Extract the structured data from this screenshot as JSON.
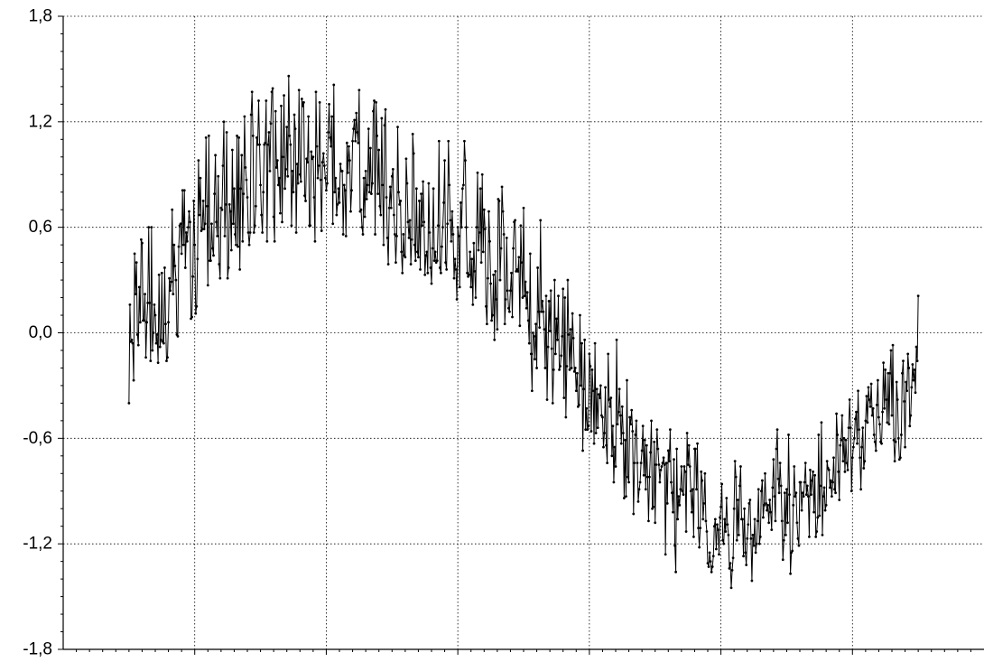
{
  "chart_data": {
    "type": "line",
    "title": "",
    "xlabel": "",
    "ylabel": "",
    "ylim": [
      -1.8,
      1.8
    ],
    "yticks": [
      1.8,
      1.2,
      0.6,
      0.0,
      -0.6,
      -1.2,
      -1.8
    ],
    "ytick_labels": [
      "1,8",
      "1,2",
      "0,6",
      "0,0",
      "-0,6",
      "-1,2",
      "-1,8"
    ],
    "xlim": [
      0,
      7
    ],
    "xticks": [
      1,
      2,
      3,
      4,
      5,
      6
    ],
    "xtick_labels": [],
    "grid": true,
    "marker": "dot",
    "color": "#000000",
    "series": [
      {
        "x_start": 0.5,
        "x_end": 6.5,
        "values": [
          -0.4,
          0.16,
          -0.05,
          -0.04,
          -0.06,
          -0.27,
          0.45,
          0.22,
          0.4,
          -0.01,
          -0.07,
          0.26,
          0.06,
          0.53,
          0.51,
          0.07,
          0.07,
          0.22,
          -0.14,
          0.06,
          0.17,
          0.6,
          0.17,
          -0.16,
          0.6,
          -0.1,
          -0.0,
          0.16,
          0.1,
          -0.06,
          -0.01,
          -0.17,
          0.33,
          -0.08,
          -0.04,
          0.34,
          -0.05,
          -0.06,
          0.37,
          0.05,
          -0.16,
          -0.14,
          0.06,
          0.31,
          0.24,
          0.29,
          0.7,
          0.22,
          0.5,
          0.38,
          0.3,
          -0.01,
          -0.02,
          0.49,
          0.61,
          0.62,
          0.45,
          0.81,
          0.5,
          0.81,
          0.37,
          0.57,
          0.52,
          0.6,
          0.69,
          0.63,
          0.08,
          0.09,
          0.32,
          0.75,
          0.5,
          0.11,
          0.15,
          0.42,
          0.98,
          0.67,
          0.88,
          0.58,
          0.59,
          0.75,
          0.59,
          0.62,
          1.11,
          0.72,
          0.27,
          1.12,
          0.41,
          0.41,
          0.62,
          0.48,
          0.44,
          0.79,
          1.01,
          0.63,
          0.55,
          0.89,
          0.39,
          0.31,
          0.71,
          0.7,
          0.95,
          1.2,
          0.55,
          0.73,
          1.14,
          0.31,
          0.37,
          0.73,
          0.69,
          0.47,
          1.04,
          0.62,
          0.82,
          0.56,
          0.5,
          1.12,
          0.49,
          1.11,
          0.36,
          0.82,
          1.01,
          0.52,
          0.79,
          1.23,
          0.94,
          0.87,
          0.77,
          0.57,
          0.5,
          0.57,
          1.24,
          1.37,
          1.12,
          0.57,
          0.61,
          0.72,
          1.11,
          1.07,
          1.32,
          1.07,
          0.84,
          0.67,
          0.57,
          0.8,
          1.07,
          1.08,
          1.32,
          0.52,
          1.07,
          1.14,
          0.92,
          1.19,
          1.37,
          1.39,
          0.66,
          0.52,
          1.26,
          0.94,
          0.98,
          0.84,
          0.88,
          0.68,
          1.29,
          0.63,
          1.0,
          1.35,
          0.82,
          0.93,
          1.17,
          0.89,
          1.46,
          1.12,
          1.07,
          0.61,
          0.92,
          0.8,
          1.24,
          1.16,
          0.57,
          0.96,
          0.85,
          1.38,
          0.9,
          0.86,
          1.33,
          1.29,
          1.31,
          0.78,
          0.75,
          0.99,
          0.97,
          1.23,
          0.61,
          0.61,
          1.03,
          0.99,
          1.0,
          0.77,
          0.52,
          1.37,
          1.06,
          0.88,
          0.95,
          1.31,
          0.87,
          0.58,
          0.97,
          1.02,
          0.95,
          0.88,
          0.81,
          0.85,
          1.14,
          1.3,
          1.11,
          1.06,
          1.23,
          0.62,
          1.41,
          0.8,
          0.88,
          0.67,
          0.73,
          0.82,
          0.74,
          0.96,
          0.92,
          0.92,
          0.56,
          0.84,
          0.81,
          0.55,
          1.08,
          0.91,
          1.06,
          0.98,
          0.69,
          0.81,
          1.09,
          1.16,
          1.21,
          1.09,
          1.25,
          1.14,
          1.08,
          1.38,
          0.69,
          0.7,
          0.6,
          0.56,
          0.88,
          0.66,
          0.92,
          0.76,
          0.84,
          1.16,
          0.8,
          1.05,
          0.79,
          0.85,
          1.26,
          1.32,
          0.56,
          1.31,
          1.12,
          0.79,
          1.04,
          0.72,
          0.67,
          1.22,
          0.84,
          0.5,
          1.18,
          1.27,
          0.77,
          0.54,
          0.39,
          0.71,
          0.83,
          0.71,
          0.89,
          0.93,
          0.67,
          0.56,
          0.4,
          0.55,
          1.17,
          0.8,
          0.73,
          0.75,
          0.46,
          0.34,
          0.56,
          0.44,
          0.43,
          0.99,
          0.85,
          0.63,
          0.54,
          0.64,
          0.39,
          0.53,
          1.13,
          1.02,
          0.5,
          0.41,
          0.82,
          0.46,
          0.43,
          0.75,
          0.36,
          0.79,
          0.61,
          0.86,
          0.63,
          0.33,
          0.44,
          0.46,
          0.34,
          0.85,
          0.57,
          0.37,
          0.28,
          0.48,
          0.82,
          0.41,
          0.46,
          0.4,
          0.41,
          0.61,
          1.09,
          0.37,
          0.34,
          0.49,
          0.6,
          0.74,
          0.98,
          0.4,
          0.36,
          0.62,
          1.09,
          0.84,
          0.64,
          0.52,
          0.69,
          0.56,
          0.31,
          0.42,
          0.36,
          0.19,
          0.6,
          0.55,
          0.26,
          0.74,
          0.6,
          0.82,
          0.84,
          1.09,
          0.98,
          0.6,
          0.34,
          0.32,
          0.33,
          0.46,
          0.26,
          0.42,
          0.16,
          0.51,
          0.35,
          0.2,
          0.6,
          0.91,
          0.47,
          0.57,
          0.82,
          0.4,
          0.9,
          0.46,
          0.7,
          0.59,
          0.15,
          0.05,
          0.31,
          0.69,
          0.52,
          0.28,
          0.07,
          0.1,
          0.33,
          -0.04,
          0.35,
          0.19,
          0.02,
          0.76,
          0.75,
          0.3,
          0.48,
          0.83,
          0.69,
          0.56,
          0.05,
          0.19,
          0.54,
          0.24,
          0.14,
          0.12,
          0.24,
          0.34,
          0.09,
          0.48,
          0.63,
          0.64,
          0.35,
          0.36,
          0.35,
          0.43,
          0.04,
          0.61,
          0.4,
          0.2,
          0.71,
          0.21,
          0.29,
          0.14,
          0.23,
          0.07,
          -0.06,
          0.45,
          -0.12,
          -0.33,
          0.0,
          -0.02,
          -0.15,
          0.05,
          -0.2,
          0.37,
          0.12,
          0.03,
          0.64,
          0.12,
          0.18,
          0.12,
          0.02,
          -0.2,
          0.21,
          -0.38,
          -0.08,
          0.18,
          0.01,
          0.24,
          -0.09,
          -0.4,
          -0.21,
          0.3,
          -0.12,
          0.08,
          -0.04,
          0.21,
          -0.21,
          -0.19,
          -0.13,
          -0.02,
          0.25,
          -0.37,
          0.2,
          -0.48,
          -0.19,
          0.3,
          -0.01,
          -0.21,
          0.02,
          -0.2,
          0.11,
          -0.03,
          -0.22,
          -0.2,
          -0.33,
          -0.23,
          -0.42,
          -0.41,
          0.1,
          -0.3,
          -0.06,
          -0.67,
          -0.32,
          -0.04,
          -0.55,
          -0.43,
          -0.55,
          -0.53,
          -0.12,
          -0.19,
          -0.56,
          -0.21,
          -0.33,
          -0.63,
          -0.06,
          -0.57,
          -0.32,
          -0.54,
          -0.35,
          -0.37,
          -0.3,
          -0.47,
          -0.48,
          -0.65,
          -0.57,
          -0.31,
          -0.64,
          -0.74,
          -0.12,
          -0.38,
          -0.42,
          -0.37,
          -0.7,
          -0.53,
          -0.85,
          -0.65,
          -0.76,
          -0.04,
          -0.52,
          -0.45,
          -0.32,
          -0.47,
          -0.63,
          -0.42,
          -0.57,
          -0.94,
          -0.61,
          -0.93,
          -0.27,
          -0.82,
          -0.85,
          -0.48,
          -0.52,
          -0.44,
          -0.56,
          -1.03,
          -0.74,
          -0.58,
          -0.5,
          -0.74,
          -0.96,
          -0.89,
          -0.85,
          -0.74,
          -0.67,
          -0.53,
          -0.81,
          -0.61,
          -0.89,
          -0.64,
          -0.82,
          -1.07,
          -0.82,
          -0.68,
          -0.5,
          -1.0,
          -0.99,
          -0.62,
          -1.08,
          -0.75,
          -0.55,
          -0.66,
          -0.75,
          -0.85,
          -0.78,
          -0.76,
          -0.74,
          -0.71,
          -0.75,
          -1.26,
          -0.74,
          -0.97,
          -0.67,
          -0.73,
          -0.55,
          -0.85,
          -0.91,
          -1.02,
          -0.72,
          -1.21,
          -1.36,
          -0.66,
          -1.06,
          -0.93,
          -0.98,
          -0.89,
          -0.76,
          -0.9,
          -0.92,
          -0.76,
          -0.79,
          -1.13,
          -0.57,
          -0.75,
          -0.64,
          -0.76,
          -0.9,
          -1.02,
          -0.89,
          -1.16,
          -0.66,
          -0.66,
          -0.89,
          -0.63,
          -1.11,
          -1.22,
          -1.11,
          -0.79,
          -0.84,
          -1.06,
          -0.97,
          -0.8,
          -1.07,
          -1.13,
          -1.31,
          -1.33,
          -1.25,
          -1.3,
          -1.36,
          -1.33,
          -1.27,
          -1.1,
          -1.06,
          -1.23,
          -1.09,
          -1.12,
          -1.26,
          -1.05,
          -0.99,
          -0.86,
          -1.18,
          -1.2,
          -1.06,
          -1.13,
          -0.94,
          -1.09,
          -1.15,
          -1.34,
          -1.31,
          -1.45,
          -1.35,
          -1.28,
          -1.0,
          -0.73,
          -0.82,
          -1.18,
          -0.95,
          -1.15,
          -0.87,
          -0.76,
          -1.06,
          -1.06,
          -1.27,
          -1.0,
          -1.25,
          -1.32,
          -1.17,
          -1.09,
          -0.97,
          -0.95,
          -1.17,
          -1.41,
          -1.15,
          -1.21,
          -1.06,
          -1.25,
          -1.2,
          -1.07,
          -0.89,
          -1.2,
          -1.16,
          -0.9,
          -0.84,
          -1.05,
          -0.98,
          -0.8,
          -0.97,
          -1.01,
          -0.98,
          -1.08,
          -0.95,
          -1.02,
          -1.12,
          -0.88,
          -0.72,
          -0.93,
          -1.07,
          -0.66,
          -0.55,
          -0.83,
          -0.91,
          -0.74,
          -0.87,
          -1.07,
          -1.29,
          -1.18,
          -0.91,
          -1.15,
          -0.89,
          -1.08,
          -0.58,
          -0.92,
          -1.37,
          -1.25,
          -1.24,
          -0.98,
          -0.76,
          -0.93,
          -0.91,
          -1.08,
          -1.17,
          -1.21,
          -0.85,
          -0.85,
          -1.01,
          -0.91,
          -0.93,
          -0.85,
          -0.74,
          -0.92,
          -0.87,
          -0.93,
          -1.16,
          -0.78,
          -0.92,
          -0.84,
          -0.79,
          -1.02,
          -0.81,
          -1.16,
          -1.13,
          -1.05,
          -0.58,
          -1.04,
          -0.87,
          -0.51,
          -1.15,
          -0.93,
          -0.88,
          -1.01,
          -0.98,
          -0.73,
          -0.77,
          -0.78,
          -0.88,
          -0.84,
          -0.93,
          -0.85,
          -0.71,
          -0.89,
          -0.91,
          -0.46,
          -0.58,
          -0.79,
          -0.95,
          -0.64,
          -0.61,
          -0.47,
          -0.73,
          -0.6,
          -0.79,
          -0.61,
          -0.74,
          -0.78,
          -0.54,
          -0.38,
          -0.54,
          -0.9,
          -0.71,
          -0.65,
          -0.6,
          -0.49,
          -0.45,
          -0.63,
          -0.33,
          -0.55,
          -0.71,
          -0.89,
          -0.65,
          -0.54,
          -0.77,
          -0.73,
          -0.5,
          -0.36,
          -0.51,
          -0.31,
          -0.38,
          -0.42,
          -0.29,
          -0.47,
          -0.43,
          -0.58,
          -0.62,
          -0.67,
          -0.41,
          -0.27,
          -0.48,
          -0.52,
          -0.62,
          -0.63,
          -0.45,
          -0.17,
          -0.43,
          -0.21,
          -0.38,
          -0.51,
          -0.23,
          -0.52,
          -0.23,
          -0.1,
          -0.47,
          -0.07,
          -0.61,
          -0.73,
          -0.62,
          -0.28,
          -0.38,
          -0.6,
          -0.72,
          -0.71,
          -0.58,
          -0.23,
          -0.16,
          -0.39,
          -0.65,
          -0.28,
          -0.33,
          -0.12,
          -0.2,
          -0.53,
          -0.47,
          -0.31,
          -0.18,
          -0.27,
          -0.21,
          -0.34,
          -0.08,
          -0.16,
          0.21
        ]
      }
    ]
  }
}
